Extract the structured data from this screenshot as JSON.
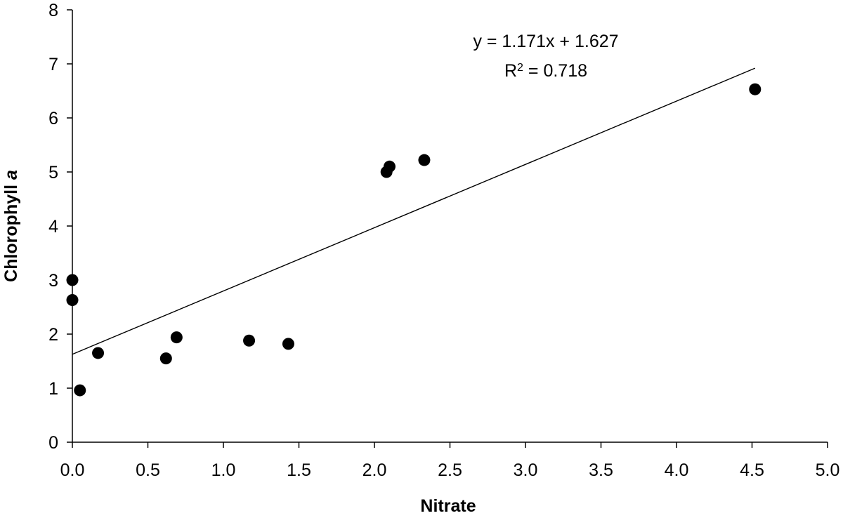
{
  "chart_data": {
    "type": "scatter",
    "title": "",
    "xlabel": "Nitrate",
    "ylabel_prefix": "Chlorophyll ",
    "ylabel_italic": "a",
    "xlim": [
      0,
      5
    ],
    "ylim": [
      0,
      8
    ],
    "x_ticks": [
      "0.0",
      "0.5",
      "1.0",
      "1.5",
      "2.0",
      "2.5",
      "3.0",
      "3.5",
      "4.0",
      "4.5",
      "5.0"
    ],
    "y_ticks": [
      "0",
      "1",
      "2",
      "3",
      "4",
      "5",
      "6",
      "7",
      "8"
    ],
    "grid": false,
    "points": [
      {
        "x": 0.0,
        "y": 3.0
      },
      {
        "x": 0.0,
        "y": 2.63
      },
      {
        "x": 0.05,
        "y": 0.96
      },
      {
        "x": 0.17,
        "y": 1.65
      },
      {
        "x": 0.62,
        "y": 1.55
      },
      {
        "x": 0.69,
        "y": 1.94
      },
      {
        "x": 1.17,
        "y": 1.88
      },
      {
        "x": 1.43,
        "y": 1.82
      },
      {
        "x": 2.08,
        "y": 5.0
      },
      {
        "x": 2.1,
        "y": 5.1
      },
      {
        "x": 2.33,
        "y": 5.22
      },
      {
        "x": 4.52,
        "y": 6.53
      }
    ],
    "trendline": {
      "slope": 1.171,
      "intercept": 1.627,
      "x_range": [
        0,
        4.52
      ]
    },
    "equation": "y = 1.171x + 1.627",
    "r2_prefix": "R",
    "r2_sup": "2",
    "r2_value": " = 0.718",
    "marker_color": "#000000",
    "line_color": "#000000"
  }
}
